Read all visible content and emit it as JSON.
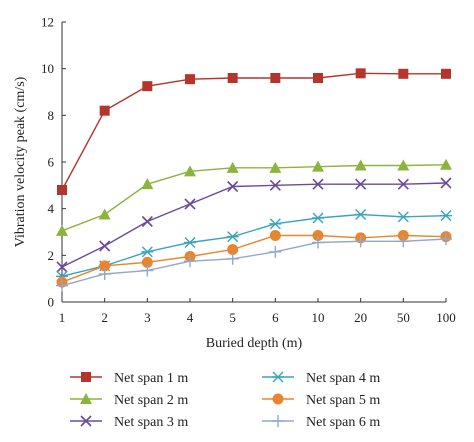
{
  "chart_data": {
    "type": "line",
    "categories": [
      "1",
      "2",
      "3",
      "4",
      "5",
      "6",
      "10",
      "20",
      "50",
      "100"
    ],
    "xlabel": "Buried depth (m)",
    "ylabel": "Vibration velocity peak (cm/s)",
    "ylim": [
      0,
      12
    ],
    "yticks": [
      0,
      2,
      4,
      6,
      8,
      10,
      12
    ],
    "grid": false,
    "legend_position": "bottom",
    "series": [
      {
        "name": "Net span 1 m",
        "color": "#b5342c",
        "marker": "square",
        "values": [
          4.8,
          8.2,
          9.25,
          9.55,
          9.6,
          9.6,
          9.6,
          9.8,
          9.78,
          9.78
        ]
      },
      {
        "name": "Net span 2 m",
        "color": "#8cb33c",
        "marker": "triangle",
        "values": [
          3.05,
          3.75,
          5.05,
          5.6,
          5.75,
          5.75,
          5.8,
          5.85,
          5.85,
          5.88
        ]
      },
      {
        "name": "Net span 3 m",
        "color": "#6a4a9c",
        "marker": "x",
        "values": [
          1.5,
          2.4,
          3.45,
          4.2,
          4.95,
          5.0,
          5.05,
          5.05,
          5.05,
          5.1
        ]
      },
      {
        "name": "Net span 4 m",
        "color": "#3aa3c2",
        "marker": "asterisk",
        "values": [
          1.1,
          1.55,
          2.15,
          2.55,
          2.8,
          3.35,
          3.6,
          3.75,
          3.65,
          3.7
        ]
      },
      {
        "name": "Net span 5 m",
        "color": "#e8852e",
        "marker": "circle",
        "values": [
          0.85,
          1.55,
          1.7,
          1.95,
          2.25,
          2.85,
          2.85,
          2.75,
          2.85,
          2.8
        ]
      },
      {
        "name": "Net span 6 m",
        "color": "#8fa8cf",
        "marker": "plus",
        "values": [
          0.7,
          1.2,
          1.35,
          1.75,
          1.85,
          2.15,
          2.55,
          2.6,
          2.6,
          2.7
        ]
      }
    ]
  }
}
